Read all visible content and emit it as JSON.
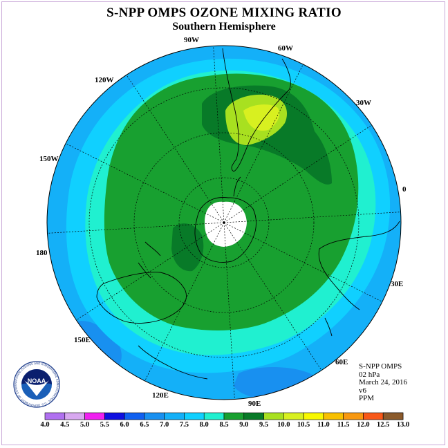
{
  "title": "S-NPP OMPS OZONE MIXING RATIO",
  "subtitle": "Southern Hemisphere",
  "longitude_labels": [
    {
      "id": "lon-90w",
      "text": "90W"
    },
    {
      "id": "lon-60w",
      "text": "60W"
    },
    {
      "id": "lon-120w",
      "text": "120W"
    },
    {
      "id": "lon-30w",
      "text": "30W"
    },
    {
      "id": "lon-150w",
      "text": "150W"
    },
    {
      "id": "lon-0",
      "text": "0"
    },
    {
      "id": "lon-180",
      "text": "180"
    },
    {
      "id": "lon-30e",
      "text": "30E"
    },
    {
      "id": "lon-150e",
      "text": "150E"
    },
    {
      "id": "lon-60e",
      "text": "60E"
    },
    {
      "id": "lon-120e",
      "text": "120E"
    },
    {
      "id": "lon-90e",
      "text": "90E"
    }
  ],
  "info": {
    "instrument": "S-NPP OMPS",
    "level": "02 hPa",
    "date": "March 24, 2016",
    "version": "v6",
    "units": "PPM"
  },
  "colorbar": {
    "labels": [
      "4.0",
      "4.5",
      "5.0",
      "5.5",
      "6.0",
      "6.5",
      "7.0",
      "7.5",
      "8.0",
      "8.5",
      "9.0",
      "9.5",
      "10.0",
      "10.5",
      "11.0",
      "11.5",
      "12.0",
      "12.5",
      "13.0"
    ],
    "colors": [
      "#b070f0",
      "#d8a8f0",
      "#f020f0",
      "#1010e0",
      "#1060f0",
      "#1890f0",
      "#14b0f8",
      "#10d0ff",
      "#20f0d0",
      "#18a030",
      "#087a28",
      "#a8e020",
      "#d8f020",
      "#f8f800",
      "#f8c000",
      "#f89810",
      "#f85818",
      "#f81010",
      "#8b5a2b"
    ]
  },
  "map_colors": {
    "outer": "#14b0f8",
    "ring": "#10d0ff",
    "band": "#20f0d0",
    "main": "#18a030",
    "dark": "#087a28",
    "high1": "#a8e020",
    "high2": "#d8f020",
    "low": "#1890f0",
    "nodata": "#ffffff"
  },
  "logo": {
    "text": "NOAA",
    "ring_text": "NATIONAL OCEANIC AND ATMOSPHERIC ADMINISTRATION · U.S. DEPARTMENT OF COMMERCE"
  }
}
